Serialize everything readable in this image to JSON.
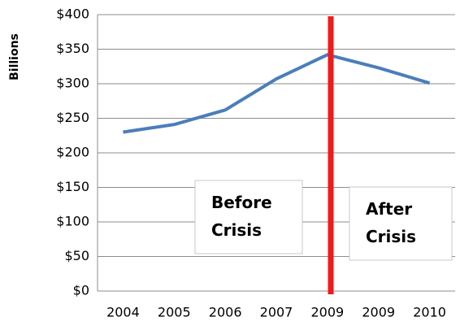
{
  "chart_data": {
    "type": "line",
    "ylabel": "Billions",
    "categories": [
      "2004",
      "2005",
      "2006",
      "2007",
      "2009",
      "2009",
      "2010"
    ],
    "series": [
      {
        "name": "Billions",
        "color": "#4a7ebb",
        "values": [
          230,
          241,
          262,
          307,
          342,
          323,
          301
        ]
      }
    ],
    "ylim": [
      0,
      400
    ],
    "yticks": [
      {
        "value": 0,
        "label": "$0"
      },
      {
        "value": 50,
        "label": "$50"
      },
      {
        "value": 100,
        "label": "$100"
      },
      {
        "value": 150,
        "label": "$150"
      },
      {
        "value": 200,
        "label": "$200"
      },
      {
        "value": 250,
        "label": "$250"
      },
      {
        "value": 300,
        "label": "$300"
      },
      {
        "value": 350,
        "label": "$350"
      },
      {
        "value": 400,
        "label": "$400"
      }
    ],
    "grid": true,
    "annotations": [
      "Before\nCrisis",
      "After\nCrisis"
    ],
    "annotation_color": "#c00000"
  }
}
